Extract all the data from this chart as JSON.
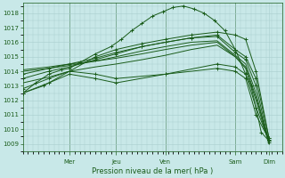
{
  "bg_color": "#c8e8e8",
  "grid_color": "#a8cece",
  "line_color": "#1a5c1a",
  "ylabel_vals": [
    1009,
    1010,
    1011,
    1012,
    1013,
    1014,
    1015,
    1016,
    1017,
    1018
  ],
  "xlabel": "Pression niveau de la mer( hPa )",
  "ylim": [
    1008.5,
    1018.7
  ],
  "xlim": [
    0,
    100
  ],
  "day_ticks": [
    18,
    36,
    55,
    82,
    95
  ],
  "day_labels": [
    "Mer",
    "Jeu",
    "Ven",
    "Sam",
    "Dim"
  ],
  "day_vlines": [
    18,
    36,
    55,
    82
  ],
  "lines": [
    {
      "x": [
        0,
        5,
        10,
        15,
        18,
        22,
        28,
        34,
        38,
        42,
        46,
        50,
        54,
        58,
        62,
        66,
        70,
        74,
        78,
        82,
        86,
        88,
        90,
        92,
        95
      ],
      "y": [
        1012.5,
        1013.2,
        1013.8,
        1014.1,
        1014.2,
        1014.6,
        1015.2,
        1015.7,
        1016.2,
        1016.8,
        1017.3,
        1017.8,
        1018.1,
        1018.4,
        1018.5,
        1018.3,
        1018.0,
        1017.5,
        1016.8,
        1015.5,
        1013.8,
        1013.0,
        1011.5,
        1009.8,
        1009.2
      ],
      "markers": true
    },
    {
      "x": [
        0,
        10,
        18,
        28,
        36,
        46,
        55,
        65,
        75,
        82,
        86,
        90,
        95
      ],
      "y": [
        1013.5,
        1014.0,
        1014.3,
        1014.8,
        1015.2,
        1015.7,
        1016.0,
        1016.3,
        1016.5,
        1015.5,
        1015.0,
        1013.5,
        1009.4
      ],
      "markers": true
    },
    {
      "x": [
        0,
        10,
        18,
        28,
        36,
        46,
        55,
        65,
        75,
        82,
        86,
        90,
        95
      ],
      "y": [
        1013.8,
        1014.2,
        1014.5,
        1014.9,
        1015.3,
        1015.7,
        1016.0,
        1016.3,
        1016.4,
        1015.3,
        1014.8,
        1013.0,
        1009.1
      ],
      "markers": true
    },
    {
      "x": [
        0,
        10,
        18,
        28,
        36,
        46,
        55,
        65,
        75,
        82,
        86,
        90,
        95
      ],
      "y": [
        1014.0,
        1014.2,
        1014.4,
        1014.7,
        1015.0,
        1015.4,
        1015.7,
        1016.0,
        1016.1,
        1015.1,
        1014.5,
        1012.5,
        1009.0
      ],
      "markers": false
    },
    {
      "x": [
        0,
        10,
        18,
        28,
        36,
        46,
        55,
        65,
        75,
        82,
        86,
        90,
        95
      ],
      "y": [
        1014.1,
        1014.3,
        1014.5,
        1014.7,
        1014.9,
        1015.2,
        1015.5,
        1015.8,
        1016.0,
        1015.0,
        1014.2,
        1012.0,
        1009.0
      ],
      "markers": false
    },
    {
      "x": [
        0,
        10,
        18,
        28,
        36,
        46,
        55,
        65,
        75,
        82,
        86,
        90,
        95
      ],
      "y": [
        1013.2,
        1013.6,
        1014.0,
        1014.3,
        1014.5,
        1014.8,
        1015.1,
        1015.5,
        1015.8,
        1015.0,
        1014.3,
        1012.2,
        1009.2
      ],
      "markers": false
    },
    {
      "x": [
        0,
        10,
        18,
        28,
        36,
        55,
        75,
        82,
        86,
        90,
        95
      ],
      "y": [
        1012.5,
        1013.2,
        1013.8,
        1013.5,
        1013.2,
        1013.8,
        1014.5,
        1014.3,
        1013.8,
        1011.5,
        1009.2
      ],
      "markers": true
    },
    {
      "x": [
        0,
        10,
        18,
        28,
        36,
        55,
        75,
        82,
        86,
        90,
        95
      ],
      "y": [
        1012.8,
        1013.5,
        1014.0,
        1013.8,
        1013.5,
        1013.8,
        1014.2,
        1014.0,
        1013.5,
        1011.0,
        1009.3
      ],
      "markers": true
    },
    {
      "x": [
        0,
        8,
        18,
        28,
        36,
        46,
        55,
        65,
        75,
        82,
        86,
        90,
        95
      ],
      "y": [
        1012.5,
        1013.0,
        1014.0,
        1015.0,
        1015.5,
        1015.9,
        1016.2,
        1016.5,
        1016.7,
        1016.5,
        1016.2,
        1014.0,
        1009.4
      ],
      "markers": true
    }
  ]
}
